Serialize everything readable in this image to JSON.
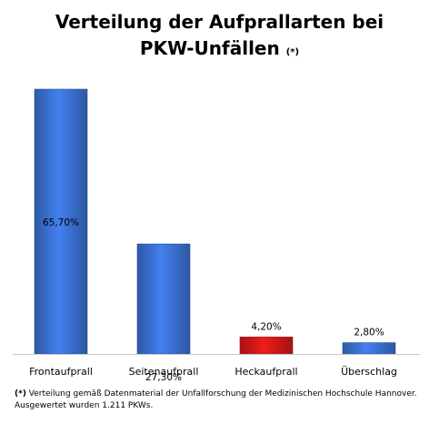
{
  "chart_data": {
    "type": "bar",
    "title_line1": "Verteilung der Aufprallarten bei",
    "title_line2": "PKW-Unfällen",
    "title_note": "(*)",
    "categories": [
      "Frontaufprall",
      "Seitenaufprall",
      "Heckaufprall",
      "Überschlag"
    ],
    "values": [
      65.7,
      27.3,
      4.2,
      2.8
    ],
    "value_labels": [
      "65,70%",
      "27,30%",
      "4,20%",
      "2,80%"
    ],
    "colors": [
      "#3a6fd0",
      "#3a6fd0",
      "#d01818",
      "#3a6fd0"
    ],
    "xlabel": "",
    "ylabel": "",
    "ylim": [
      0,
      70
    ],
    "grid": false,
    "legend": "none"
  },
  "footnote": {
    "star": "(*)",
    "line1": " Verteilung gemäß Datenmaterial der Unfallforschung der Medizinischen Hochschule Hannover.",
    "line2": "Ausgewertet wurden 1.211 PKWs."
  }
}
